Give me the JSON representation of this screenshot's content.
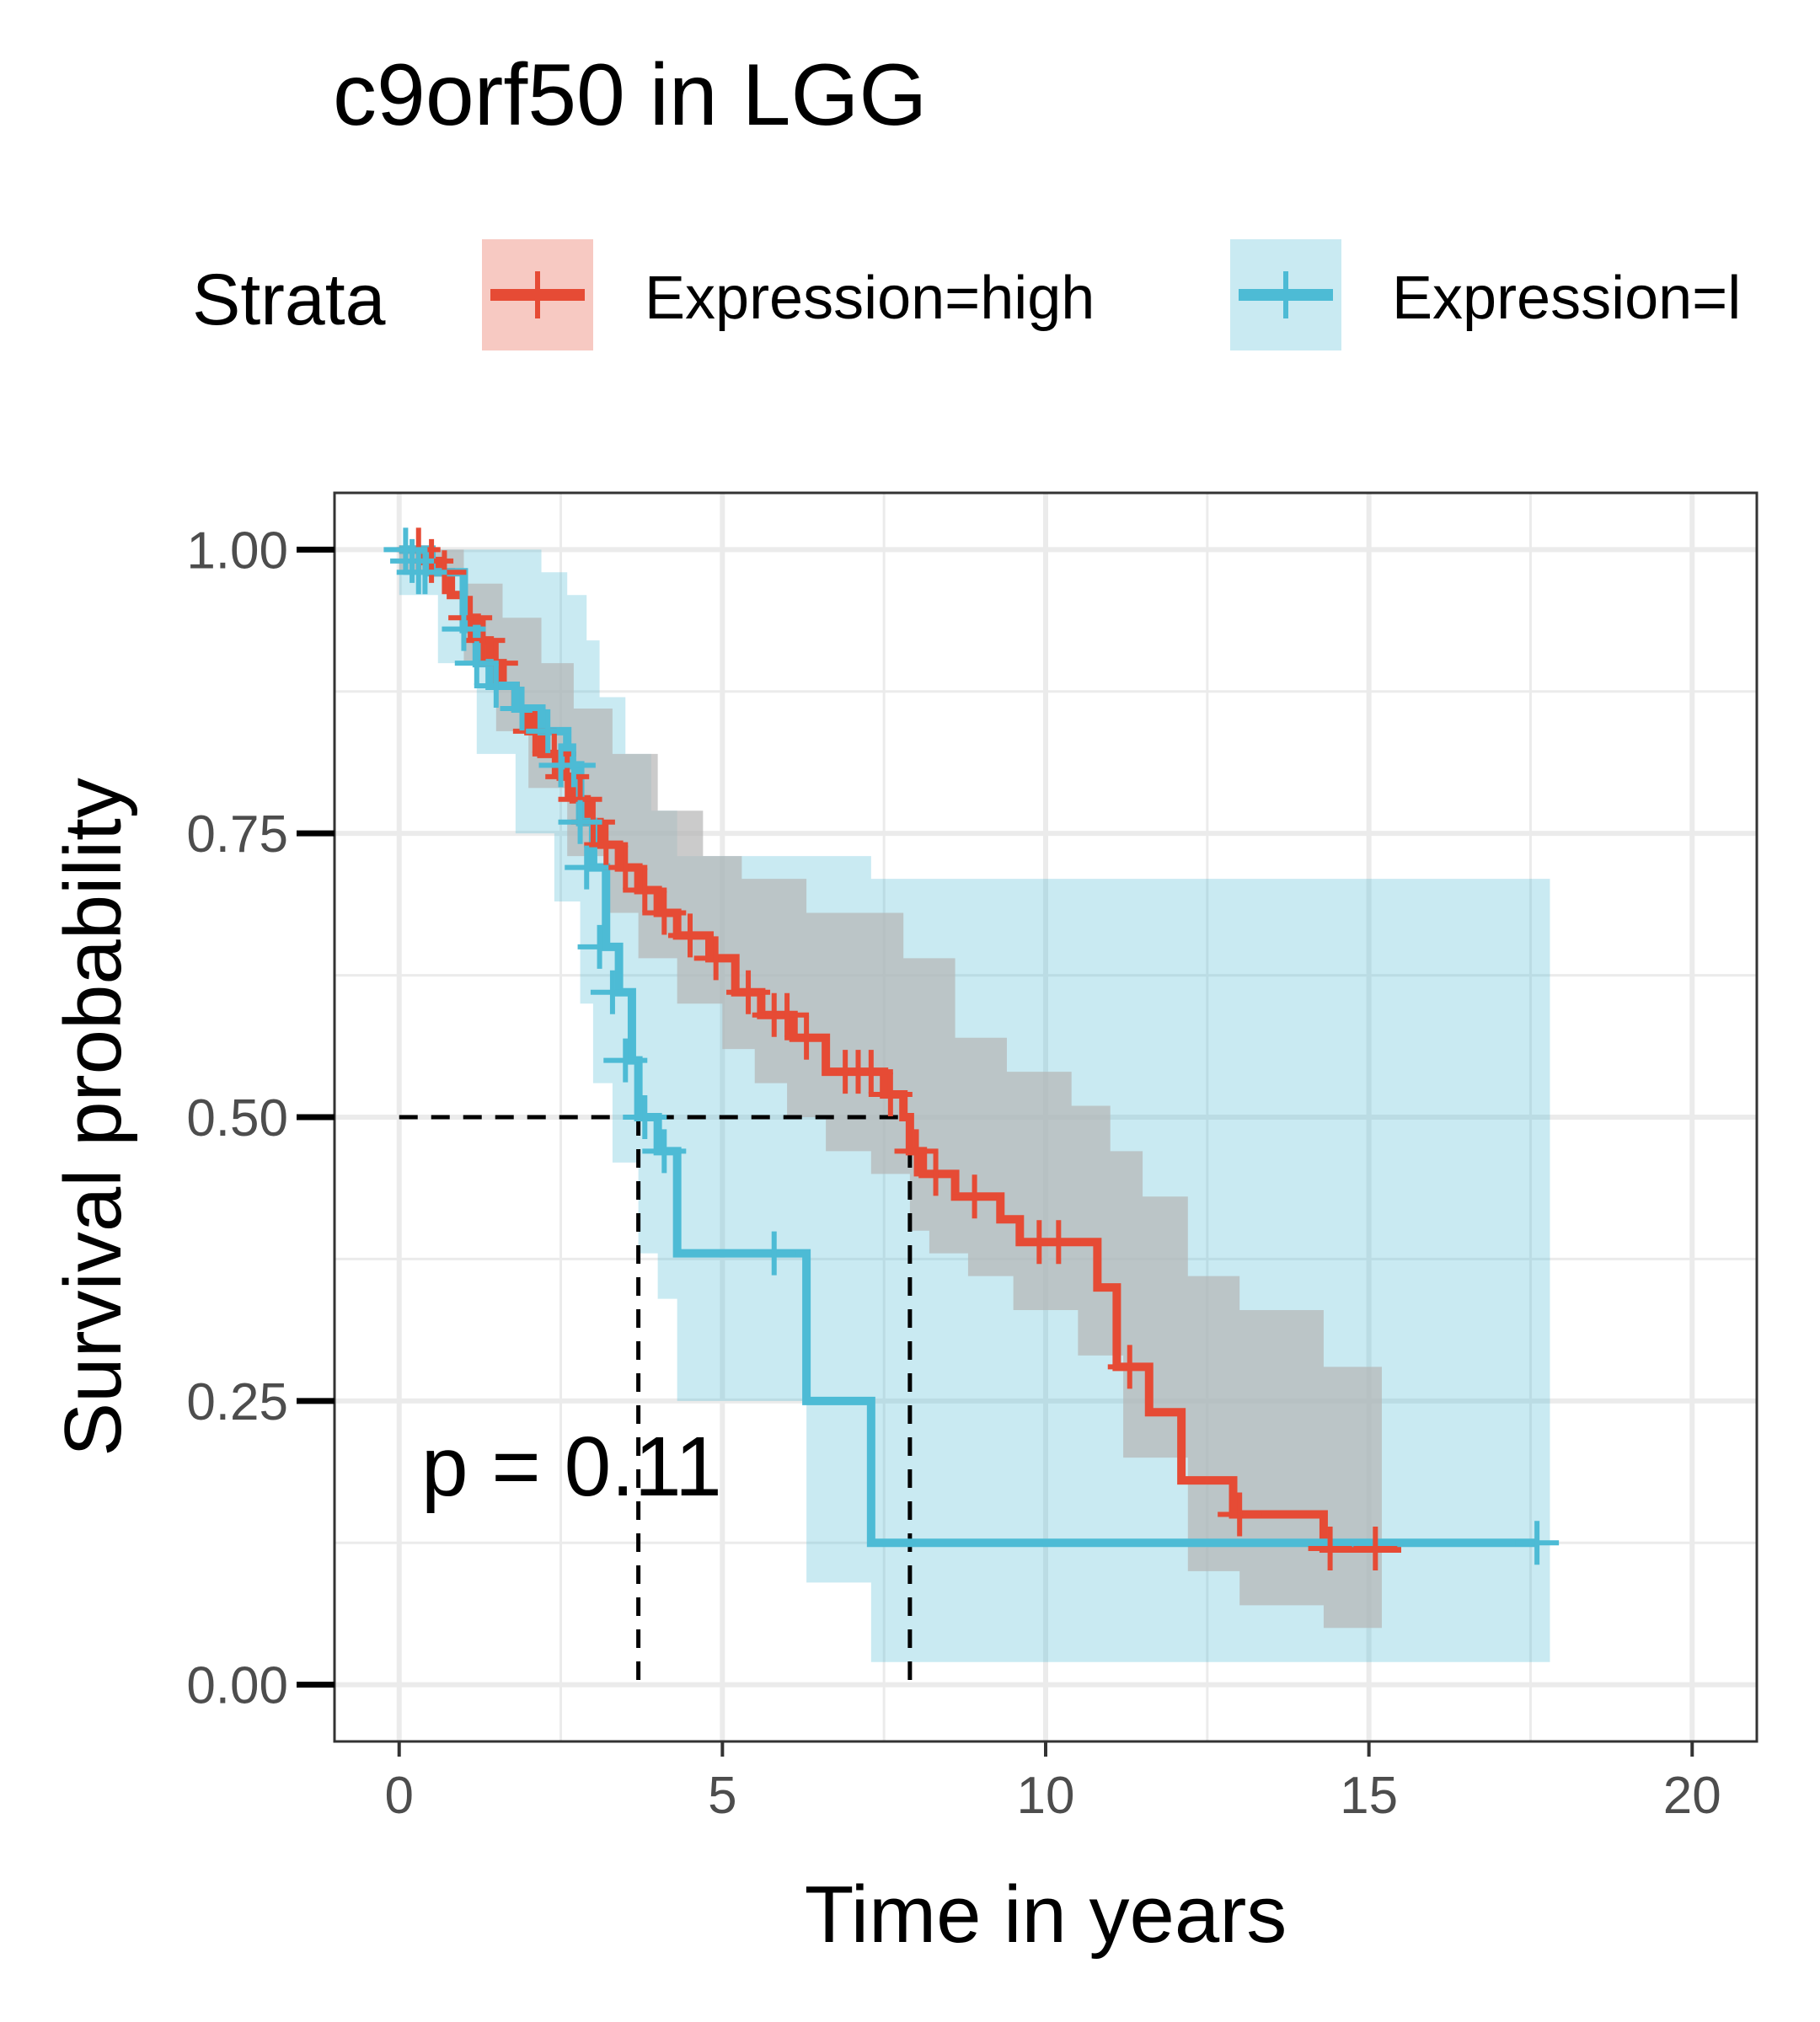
{
  "chart_data": {
    "type": "line",
    "title": "c9orf50 in LGG",
    "xlabel": "Time in years",
    "ylabel": "Survival probability",
    "xlim": [
      -1,
      21
    ],
    "ylim": [
      -0.05,
      1.05
    ],
    "x_ticks": [
      0,
      5,
      10,
      15,
      20
    ],
    "y_ticks": [
      0,
      0.25,
      0.5,
      0.75,
      1.0
    ],
    "x_tick_labels": [
      "0",
      "5",
      "10",
      "15",
      "20"
    ],
    "y_tick_labels": [
      "0.00",
      "0.25",
      "0.50",
      "0.75",
      "1.00"
    ],
    "grid": true,
    "legend": {
      "title": "Strata",
      "position": "top",
      "entries": [
        "Expression=high",
        "Expression=l"
      ]
    },
    "annotation": "p = 0.11",
    "median_lines": [
      3.7,
      7.9
    ],
    "colors": {
      "high": "#e64b35",
      "low": "#4dbbd5",
      "high_band": "#b5b5b5",
      "low_band": "#4dbbd5"
    },
    "series": [
      {
        "name": "Expression=high",
        "steps": [
          [
            0,
            1.0
          ],
          [
            0.4,
            0.99
          ],
          [
            0.6,
            0.98
          ],
          [
            0.8,
            0.96
          ],
          [
            1.0,
            0.94
          ],
          [
            1.2,
            0.92
          ],
          [
            1.4,
            0.9
          ],
          [
            1.6,
            0.88
          ],
          [
            1.8,
            0.86
          ],
          [
            2.0,
            0.84
          ],
          [
            2.2,
            0.82
          ],
          [
            2.5,
            0.8
          ],
          [
            2.7,
            0.78
          ],
          [
            2.9,
            0.76
          ],
          [
            3.1,
            0.74
          ],
          [
            3.4,
            0.72
          ],
          [
            3.7,
            0.7
          ],
          [
            4.0,
            0.68
          ],
          [
            4.3,
            0.66
          ],
          [
            4.8,
            0.64
          ],
          [
            5.2,
            0.61
          ],
          [
            5.6,
            0.59
          ],
          [
            6.1,
            0.57
          ],
          [
            6.6,
            0.54
          ],
          [
            7.5,
            0.52
          ],
          [
            7.8,
            0.5
          ],
          [
            7.9,
            0.47
          ],
          [
            8.1,
            0.45
          ],
          [
            8.6,
            0.43
          ],
          [
            9.3,
            0.41
          ],
          [
            9.6,
            0.39
          ],
          [
            10.8,
            0.35
          ],
          [
            11.1,
            0.28
          ],
          [
            11.6,
            0.24
          ],
          [
            12.1,
            0.18
          ],
          [
            12.9,
            0.15
          ],
          [
            14.3,
            0.12
          ],
          [
            15.5,
            0.12
          ]
        ],
        "lower": [
          [
            0,
            0.98
          ],
          [
            1.0,
            0.9
          ],
          [
            1.5,
            0.84
          ],
          [
            2.0,
            0.79
          ],
          [
            2.6,
            0.73
          ],
          [
            3.2,
            0.68
          ],
          [
            3.7,
            0.64
          ],
          [
            4.3,
            0.6
          ],
          [
            5.0,
            0.56
          ],
          [
            5.5,
            0.53
          ],
          [
            6.0,
            0.5
          ],
          [
            6.6,
            0.47
          ],
          [
            7.3,
            0.45
          ],
          [
            7.9,
            0.4
          ],
          [
            8.2,
            0.38
          ],
          [
            8.8,
            0.36
          ],
          [
            9.5,
            0.33
          ],
          [
            10.5,
            0.29
          ],
          [
            11.2,
            0.2
          ],
          [
            12.2,
            0.1
          ],
          [
            13.0,
            0.07
          ],
          [
            14.3,
            0.05
          ],
          [
            15.2,
            0.05
          ]
        ],
        "upper": [
          [
            0,
            1.0
          ],
          [
            1.0,
            0.97
          ],
          [
            1.6,
            0.94
          ],
          [
            2.2,
            0.9
          ],
          [
            2.7,
            0.86
          ],
          [
            3.3,
            0.82
          ],
          [
            4.0,
            0.77
          ],
          [
            4.7,
            0.73
          ],
          [
            5.3,
            0.71
          ],
          [
            6.3,
            0.68
          ],
          [
            7.8,
            0.64
          ],
          [
            8.6,
            0.57
          ],
          [
            9.4,
            0.54
          ],
          [
            10.4,
            0.51
          ],
          [
            11.0,
            0.47
          ],
          [
            11.5,
            0.43
          ],
          [
            12.2,
            0.36
          ],
          [
            13.0,
            0.33
          ],
          [
            14.3,
            0.28
          ],
          [
            15.2,
            0.28
          ]
        ],
        "censors": [
          [
            0.3,
            1.0
          ],
          [
            0.5,
            0.99
          ],
          [
            0.7,
            0.98
          ],
          [
            1.1,
            0.94
          ],
          [
            1.3,
            0.92
          ],
          [
            1.5,
            0.9
          ],
          [
            1.9,
            0.86
          ],
          [
            2.1,
            0.84
          ],
          [
            2.4,
            0.82
          ],
          [
            2.6,
            0.8
          ],
          [
            2.8,
            0.78
          ],
          [
            3.0,
            0.76
          ],
          [
            3.2,
            0.74
          ],
          [
            3.5,
            0.72
          ],
          [
            3.8,
            0.7
          ],
          [
            4.1,
            0.68
          ],
          [
            4.5,
            0.66
          ],
          [
            4.9,
            0.64
          ],
          [
            5.4,
            0.61
          ],
          [
            5.8,
            0.59
          ],
          [
            6.0,
            0.59
          ],
          [
            6.3,
            0.57
          ],
          [
            6.9,
            0.54
          ],
          [
            7.1,
            0.54
          ],
          [
            7.3,
            0.54
          ],
          [
            7.6,
            0.52
          ],
          [
            8.0,
            0.47
          ],
          [
            8.3,
            0.45
          ],
          [
            8.9,
            0.43
          ],
          [
            9.9,
            0.39
          ],
          [
            10.2,
            0.39
          ],
          [
            11.3,
            0.28
          ],
          [
            13.0,
            0.15
          ],
          [
            14.4,
            0.12
          ],
          [
            15.1,
            0.12
          ]
        ]
      },
      {
        "name": "Expression=l",
        "steps": [
          [
            0,
            1.0
          ],
          [
            0.5,
            0.98
          ],
          [
            1.0,
            0.93
          ],
          [
            1.2,
            0.9
          ],
          [
            1.4,
            0.88
          ],
          [
            1.8,
            0.86
          ],
          [
            2.2,
            0.84
          ],
          [
            2.6,
            0.81
          ],
          [
            2.8,
            0.76
          ],
          [
            3.0,
            0.72
          ],
          [
            3.2,
            0.65
          ],
          [
            3.4,
            0.61
          ],
          [
            3.6,
            0.55
          ],
          [
            3.7,
            0.5
          ],
          [
            4.0,
            0.47
          ],
          [
            4.3,
            0.38
          ],
          [
            6.3,
            0.25
          ],
          [
            7.3,
            0.125
          ],
          [
            17.6,
            0.125
          ]
        ],
        "lower": [
          [
            0,
            0.96
          ],
          [
            0.6,
            0.9
          ],
          [
            1.2,
            0.82
          ],
          [
            1.8,
            0.75
          ],
          [
            2.4,
            0.69
          ],
          [
            2.8,
            0.6
          ],
          [
            3.0,
            0.53
          ],
          [
            3.3,
            0.46
          ],
          [
            3.7,
            0.38
          ],
          [
            4.0,
            0.34
          ],
          [
            4.3,
            0.25
          ],
          [
            6.3,
            0.09
          ],
          [
            7.3,
            0.02
          ],
          [
            17.8,
            0.02
          ]
        ],
        "upper": [
          [
            0,
            1.0
          ],
          [
            1.0,
            1.0
          ],
          [
            2.2,
            0.98
          ],
          [
            2.6,
            0.96
          ],
          [
            2.9,
            0.92
          ],
          [
            3.1,
            0.87
          ],
          [
            3.5,
            0.82
          ],
          [
            3.9,
            0.77
          ],
          [
            4.3,
            0.73
          ],
          [
            7.3,
            0.71
          ],
          [
            17.8,
            0.71
          ]
        ],
        "censors": [
          [
            0.1,
            1.0
          ],
          [
            0.2,
            0.99
          ],
          [
            0.3,
            0.98
          ],
          [
            0.4,
            0.98
          ],
          [
            1.0,
            0.93
          ],
          [
            1.2,
            0.9
          ],
          [
            1.5,
            0.88
          ],
          [
            1.9,
            0.86
          ],
          [
            2.3,
            0.84
          ],
          [
            2.5,
            0.81
          ],
          [
            2.7,
            0.81
          ],
          [
            2.8,
            0.76
          ],
          [
            2.9,
            0.72
          ],
          [
            3.1,
            0.65
          ],
          [
            3.3,
            0.61
          ],
          [
            3.5,
            0.55
          ],
          [
            3.8,
            0.5
          ],
          [
            4.1,
            0.47
          ],
          [
            5.8,
            0.38
          ],
          [
            17.6,
            0.125
          ]
        ]
      }
    ]
  }
}
